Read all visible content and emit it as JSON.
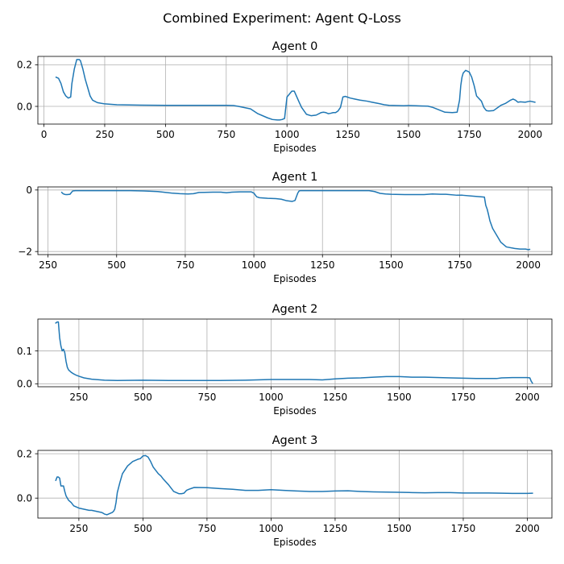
{
  "chart_data": {
    "suptitle": "Combined Experiment: Agent Q-Loss",
    "subplots": [
      {
        "type": "line",
        "title": "Agent 0",
        "xlabel": "Episodes",
        "xlim": [
          -25,
          2090
        ],
        "ylim": [
          -0.085,
          0.24
        ],
        "xticks": [
          0,
          250,
          500,
          750,
          1000,
          1250,
          1500,
          1750,
          2000
        ],
        "xtick_labels": [
          "0",
          "250",
          "500",
          "750",
          "1000",
          "1250",
          "1500",
          "1750",
          "2000"
        ],
        "yticks": [
          0.0,
          0.2
        ],
        "ytick_labels": [
          "0.0",
          "0.2"
        ],
        "series": [
          {
            "name": "Agent 0",
            "x": [
              50,
              60,
              70,
              80,
              90,
              100,
              110,
              115,
              125,
              135,
              145,
              150,
              160,
              170,
              180,
              190,
              200,
              220,
              250,
              300,
              400,
              500,
              600,
              700,
              750,
              780,
              800,
              850,
              880,
              920,
              940,
              960,
              970,
              980,
              990,
              1000,
              1020,
              1030,
              1050,
              1060,
              1080,
              1100,
              1120,
              1140,
              1150,
              1160,
              1170,
              1180,
              1190,
              1200,
              1210,
              1220,
              1230,
              1240,
              1260,
              1280,
              1300,
              1330,
              1350,
              1380,
              1400,
              1420,
              1450,
              1480,
              1500,
              1530,
              1550,
              1580,
              1600,
              1650,
              1680,
              1700,
              1710,
              1715,
              1720,
              1725,
              1735,
              1750,
              1760,
              1770,
              1780,
              1800,
              1810,
              1820,
              1830,
              1850,
              1880,
              1900,
              1920,
              1930,
              1940,
              1950,
              1960,
              1980,
              2000,
              2020
            ],
            "y": [
              0.14,
              0.135,
              0.11,
              0.07,
              0.05,
              0.04,
              0.045,
              0.11,
              0.18,
              0.225,
              0.225,
              0.22,
              0.18,
              0.13,
              0.09,
              0.05,
              0.03,
              0.018,
              0.012,
              0.008,
              0.006,
              0.005,
              0.005,
              0.005,
              0.005,
              0.004,
              0.0,
              -0.012,
              -0.035,
              -0.055,
              -0.063,
              -0.065,
              -0.065,
              -0.063,
              -0.058,
              0.045,
              0.073,
              0.073,
              0.02,
              -0.005,
              -0.038,
              -0.045,
              -0.042,
              -0.03,
              -0.028,
              -0.03,
              -0.035,
              -0.033,
              -0.03,
              -0.03,
              -0.022,
              -0.005,
              0.045,
              0.048,
              0.04,
              0.035,
              0.03,
              0.025,
              0.02,
              0.013,
              0.008,
              0.005,
              0.004,
              0.003,
              0.004,
              0.003,
              0.002,
              0.001,
              -0.005,
              -0.028,
              -0.03,
              -0.028,
              0.03,
              0.1,
              0.14,
              0.16,
              0.173,
              0.165,
              0.14,
              0.1,
              0.05,
              0.025,
              -0.005,
              -0.02,
              -0.022,
              -0.02,
              0.005,
              0.015,
              0.03,
              0.035,
              0.03,
              0.02,
              0.022,
              0.02,
              0.025,
              0.02
            ]
          }
        ]
      },
      {
        "type": "line",
        "title": "Agent 1",
        "xlabel": "Episodes",
        "xlim": [
          213,
          2086
        ],
        "ylim": [
          -2.1,
          0.1
        ],
        "xticks": [
          250,
          500,
          750,
          1000,
          1250,
          1500,
          1750,
          2000
        ],
        "xtick_labels": [
          "250",
          "500",
          "750",
          "1000",
          "1250",
          "1500",
          "1750",
          "2000"
        ],
        "yticks": [
          -2,
          0
        ],
        "ytick_labels": [
          "−2",
          "0"
        ],
        "series": [
          {
            "name": "Agent 1",
            "x": [
              300,
              305,
              310,
              315,
              320,
              330,
              340,
              350,
              400,
              450,
              500,
              550,
              600,
              650,
              700,
              730,
              760,
              780,
              800,
              850,
              880,
              900,
              920,
              950,
              990,
              1000,
              1010,
              1020,
              1050,
              1080,
              1100,
              1120,
              1140,
              1150,
              1160,
              1165,
              1170,
              1180,
              1200,
              1250,
              1300,
              1400,
              1420,
              1440,
              1450,
              1460,
              1480,
              1500,
              1550,
              1600,
              1620,
              1650,
              1680,
              1700,
              1740,
              1760,
              1800,
              1840,
              1845,
              1850,
              1855,
              1860,
              1870,
              1880,
              1890,
              1900,
              1920,
              1950,
              1970,
              1990,
              2000,
              2005
            ],
            "y": [
              -0.08,
              -0.12,
              -0.14,
              -0.15,
              -0.15,
              -0.14,
              -0.03,
              -0.02,
              -0.02,
              -0.02,
              -0.02,
              -0.02,
              -0.03,
              -0.05,
              -0.1,
              -0.12,
              -0.13,
              -0.12,
              -0.08,
              -0.07,
              -0.07,
              -0.09,
              -0.07,
              -0.06,
              -0.06,
              -0.1,
              -0.22,
              -0.25,
              -0.27,
              -0.28,
              -0.3,
              -0.35,
              -0.37,
              -0.34,
              -0.1,
              -0.03,
              -0.02,
              -0.02,
              -0.02,
              -0.02,
              -0.02,
              -0.02,
              -0.02,
              -0.05,
              -0.08,
              -0.11,
              -0.13,
              -0.14,
              -0.15,
              -0.15,
              -0.15,
              -0.13,
              -0.14,
              -0.14,
              -0.17,
              -0.17,
              -0.2,
              -0.23,
              -0.5,
              -0.62,
              -0.8,
              -1.0,
              -1.25,
              -1.4,
              -1.55,
              -1.7,
              -1.85,
              -1.9,
              -1.92,
              -1.92,
              -1.94,
              -1.93
            ]
          }
        ]
      },
      {
        "type": "line",
        "title": "Agent 2",
        "xlabel": "Episodes",
        "xlim": [
          90,
          2096
        ],
        "ylim": [
          -0.009,
          0.197
        ],
        "xticks": [
          250,
          500,
          750,
          1000,
          1250,
          1500,
          1750,
          2000
        ],
        "xtick_labels": [
          "250",
          "500",
          "750",
          "1000",
          "1250",
          "1500",
          "1750",
          "2000"
        ],
        "yticks": [
          0.0,
          0.1
        ],
        "ytick_labels": [
          "0.0",
          "0.1"
        ],
        "series": [
          {
            "name": "Agent 2",
            "x": [
              160,
              165,
              170,
              175,
              180,
              185,
              190,
              195,
              200,
              205,
              210,
              220,
              230,
              240,
              250,
              270,
              300,
              350,
              400,
              500,
              600,
              700,
              800,
              900,
              1000,
              1100,
              1150,
              1200,
              1250,
              1300,
              1350,
              1400,
              1450,
              1500,
              1550,
              1600,
              1700,
              1750,
              1800,
              1850,
              1880,
              1900,
              1950,
              2000,
              2010,
              2015,
              2020
            ],
            "y": [
              0.185,
              0.188,
              0.188,
              0.14,
              0.115,
              0.1,
              0.105,
              0.095,
              0.068,
              0.05,
              0.042,
              0.035,
              0.03,
              0.026,
              0.023,
              0.018,
              0.014,
              0.011,
              0.01,
              0.011,
              0.01,
              0.01,
              0.01,
              0.011,
              0.013,
              0.013,
              0.013,
              0.012,
              0.015,
              0.017,
              0.018,
              0.02,
              0.022,
              0.022,
              0.02,
              0.02,
              0.018,
              0.017,
              0.016,
              0.016,
              0.016,
              0.018,
              0.019,
              0.019,
              0.018,
              0.008,
              0.002
            ]
          }
        ]
      },
      {
        "type": "line",
        "title": "Agent 3",
        "xlabel": "Episodes",
        "xlim": [
          90,
          2096
        ],
        "ylim": [
          -0.09,
          0.215
        ],
        "xticks": [
          250,
          500,
          750,
          1000,
          1250,
          1500,
          1750,
          2000
        ],
        "xtick_labels": [
          "250",
          "500",
          "750",
          "1000",
          "1250",
          "1500",
          "1750",
          "2000"
        ],
        "yticks": [
          0.0,
          0.2
        ],
        "ytick_labels": [
          "0.0",
          "0.2"
        ],
        "series": [
          {
            "name": "Agent 3",
            "x": [
              160,
              165,
              170,
              175,
              180,
              190,
              195,
              200,
              210,
              220,
              230,
              250,
              270,
              290,
              300,
              320,
              340,
              350,
              360,
              370,
              380,
              385,
              390,
              395,
              400,
              410,
              420,
              440,
              460,
              480,
              490,
              500,
              510,
              520,
              530,
              540,
              550,
              560,
              570,
              580,
              600,
              620,
              640,
              650,
              660,
              670,
              680,
              700,
              750,
              800,
              850,
              900,
              950,
              1000,
              1050,
              1100,
              1150,
              1200,
              1250,
              1300,
              1350,
              1400,
              1450,
              1500,
              1550,
              1600,
              1650,
              1700,
              1750,
              1800,
              1850,
              1900,
              1950,
              2000,
              2020
            ],
            "y": [
              0.08,
              0.095,
              0.095,
              0.09,
              0.055,
              0.055,
              0.03,
              0.01,
              -0.01,
              -0.02,
              -0.035,
              -0.045,
              -0.05,
              -0.055,
              -0.055,
              -0.06,
              -0.065,
              -0.072,
              -0.075,
              -0.07,
              -0.065,
              -0.06,
              -0.05,
              -0.02,
              0.025,
              0.07,
              0.11,
              0.145,
              0.165,
              0.175,
              0.178,
              0.19,
              0.192,
              0.185,
              0.165,
              0.14,
              0.125,
              0.11,
              0.1,
              0.085,
              0.06,
              0.03,
              0.02,
              0.02,
              0.022,
              0.035,
              0.04,
              0.048,
              0.047,
              0.043,
              0.04,
              0.035,
              0.035,
              0.038,
              0.035,
              0.032,
              0.03,
              0.03,
              0.032,
              0.033,
              0.03,
              0.028,
              0.027,
              0.026,
              0.025,
              0.024,
              0.025,
              0.025,
              0.023,
              0.023,
              0.023,
              0.022,
              0.021,
              0.021,
              0.022
            ]
          }
        ]
      }
    ]
  }
}
